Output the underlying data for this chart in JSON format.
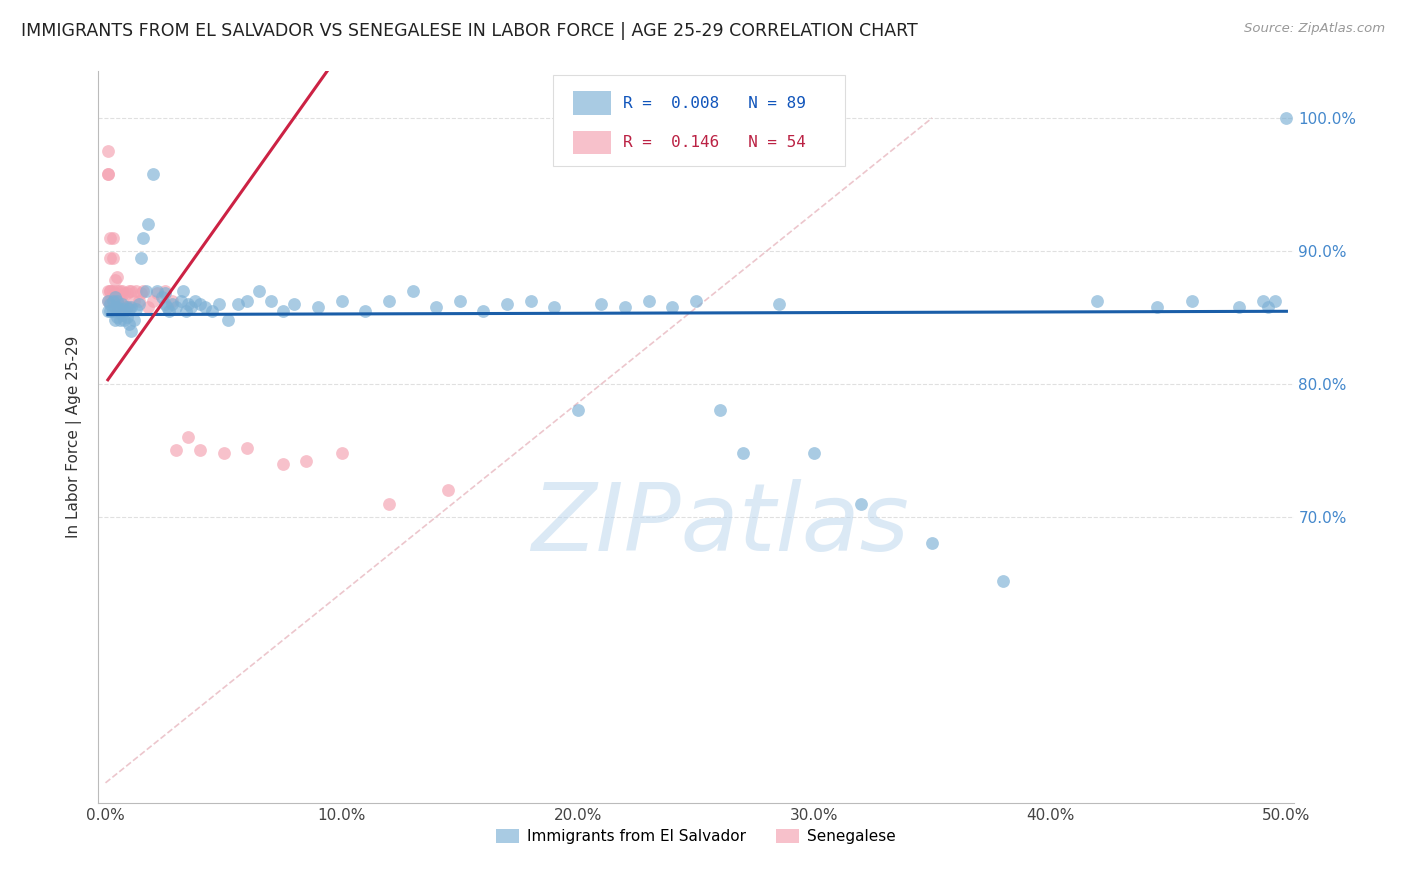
{
  "title": "IMMIGRANTS FROM EL SALVADOR VS SENEGALESE IN LABOR FORCE | AGE 25-29 CORRELATION CHART",
  "source": "Source: ZipAtlas.com",
  "ylabel": "In Labor Force | Age 25-29",
  "blue_R": "0.008",
  "blue_N": "89",
  "pink_R": "0.146",
  "pink_N": "54",
  "blue_color": "#7BAFD4",
  "pink_color": "#F4A0B0",
  "blue_line_color": "#1A5EA8",
  "pink_line_color": "#CC2244",
  "diag_color": "#E8B8C0",
  "grid_color": "#CCCCCC",
  "watermark": "ZIPatlas",
  "watermark_color": "#B8D4EC",
  "xlim": [
    -0.003,
    0.503
  ],
  "ylim": [
    0.485,
    1.035
  ],
  "ytick_vals": [
    0.7,
    0.8,
    0.9,
    1.0
  ],
  "ytick_labs": [
    "70.0%",
    "80.0%",
    "90.0%",
    "100.0%"
  ],
  "xtick_vals": [
    0.0,
    0.1,
    0.2,
    0.3,
    0.4,
    0.5
  ],
  "xtick_labs": [
    "0.0%",
    "10.0%",
    "20.0%",
    "30.0%",
    "40.0%",
    "50.0%"
  ],
  "blue_x": [
    0.001,
    0.001,
    0.002,
    0.002,
    0.003,
    0.003,
    0.004,
    0.004,
    0.004,
    0.005,
    0.005,
    0.005,
    0.006,
    0.006,
    0.007,
    0.007,
    0.008,
    0.008,
    0.009,
    0.009,
    0.01,
    0.01,
    0.011,
    0.011,
    0.012,
    0.013,
    0.014,
    0.015,
    0.016,
    0.017,
    0.018,
    0.02,
    0.022,
    0.024,
    0.025,
    0.025,
    0.026,
    0.027,
    0.028,
    0.03,
    0.032,
    0.033,
    0.034,
    0.035,
    0.036,
    0.038,
    0.04,
    0.042,
    0.045,
    0.048,
    0.052,
    0.056,
    0.06,
    0.065,
    0.07,
    0.075,
    0.08,
    0.09,
    0.1,
    0.11,
    0.12,
    0.13,
    0.14,
    0.15,
    0.16,
    0.17,
    0.18,
    0.19,
    0.2,
    0.21,
    0.22,
    0.23,
    0.24,
    0.25,
    0.26,
    0.27,
    0.285,
    0.3,
    0.32,
    0.35,
    0.38,
    0.42,
    0.445,
    0.46,
    0.48,
    0.49,
    0.492,
    0.495,
    0.5
  ],
  "blue_y": [
    0.862,
    0.855,
    0.86,
    0.855,
    0.862,
    0.855,
    0.848,
    0.858,
    0.865,
    0.85,
    0.858,
    0.862,
    0.848,
    0.856,
    0.852,
    0.86,
    0.848,
    0.856,
    0.85,
    0.858,
    0.845,
    0.856,
    0.84,
    0.858,
    0.848,
    0.856,
    0.86,
    0.895,
    0.91,
    0.87,
    0.92,
    0.958,
    0.87,
    0.865,
    0.86,
    0.868,
    0.858,
    0.855,
    0.86,
    0.858,
    0.862,
    0.87,
    0.855,
    0.86,
    0.858,
    0.862,
    0.86,
    0.858,
    0.855,
    0.86,
    0.848,
    0.86,
    0.862,
    0.87,
    0.862,
    0.855,
    0.86,
    0.858,
    0.862,
    0.855,
    0.862,
    0.87,
    0.858,
    0.862,
    0.855,
    0.86,
    0.862,
    0.858,
    0.78,
    0.86,
    0.858,
    0.862,
    0.858,
    0.862,
    0.78,
    0.748,
    0.86,
    0.748,
    0.71,
    0.68,
    0.652,
    0.862,
    0.858,
    0.862,
    0.858,
    0.862,
    0.858,
    0.862,
    1.0
  ],
  "pink_x": [
    0.001,
    0.001,
    0.001,
    0.001,
    0.001,
    0.002,
    0.002,
    0.002,
    0.002,
    0.002,
    0.003,
    0.003,
    0.003,
    0.003,
    0.004,
    0.004,
    0.004,
    0.005,
    0.005,
    0.005,
    0.005,
    0.006,
    0.006,
    0.006,
    0.007,
    0.007,
    0.007,
    0.008,
    0.008,
    0.009,
    0.009,
    0.01,
    0.01,
    0.011,
    0.012,
    0.013,
    0.014,
    0.015,
    0.016,
    0.018,
    0.02,
    0.022,
    0.025,
    0.028,
    0.03,
    0.035,
    0.04,
    0.05,
    0.06,
    0.075,
    0.085,
    0.1,
    0.12,
    0.145
  ],
  "pink_y": [
    0.862,
    0.87,
    0.958,
    0.958,
    0.975,
    0.862,
    0.87,
    0.895,
    0.91,
    0.87,
    0.862,
    0.87,
    0.895,
    0.91,
    0.858,
    0.868,
    0.878,
    0.858,
    0.865,
    0.87,
    0.88,
    0.858,
    0.862,
    0.87,
    0.862,
    0.87,
    0.858,
    0.858,
    0.868,
    0.858,
    0.868,
    0.858,
    0.87,
    0.87,
    0.862,
    0.87,
    0.862,
    0.868,
    0.87,
    0.858,
    0.862,
    0.868,
    0.87,
    0.862,
    0.75,
    0.76,
    0.75,
    0.748,
    0.752,
    0.74,
    0.742,
    0.748,
    0.71,
    0.72
  ]
}
